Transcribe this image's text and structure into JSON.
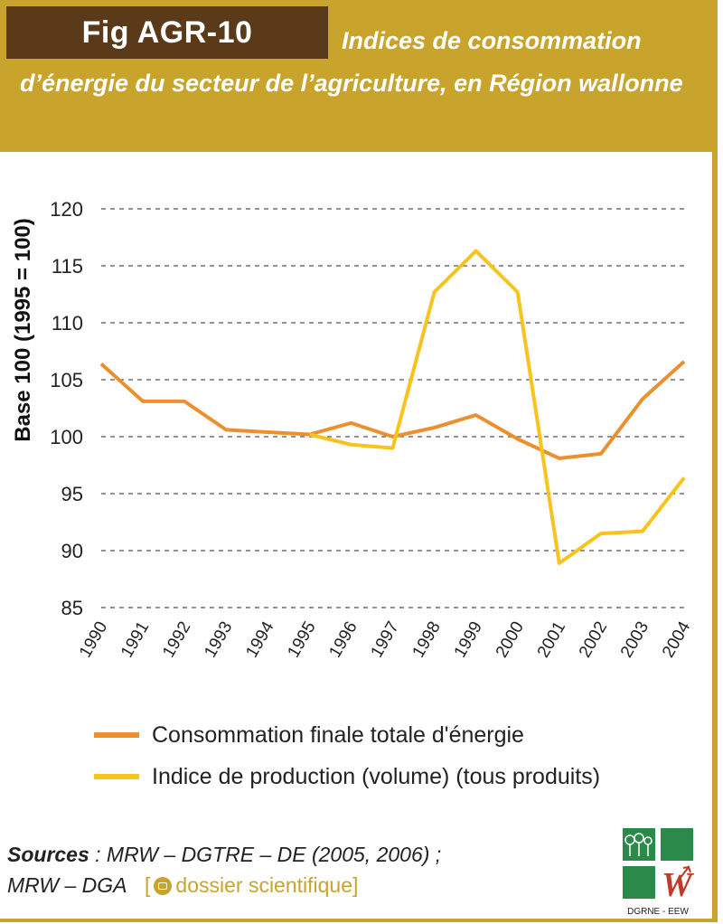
{
  "header": {
    "fig_label": "Fig AGR-10",
    "title_line1": "Indices de consommation",
    "title_rest": "d’énergie du secteur de l’agriculture, en Région wallonne"
  },
  "colors": {
    "header_bg": "#c9a42c",
    "tag_bg": "#5b3a19",
    "series_consumption": "#ec8f2e",
    "series_production": "#f7c31c",
    "grid": "#555555"
  },
  "chart_data": {
    "type": "line",
    "ylabel": "Base 100 (1995 = 100)",
    "xlabel": "",
    "ylim": [
      85,
      120
    ],
    "yticks": [
      85,
      90,
      95,
      100,
      105,
      110,
      115,
      120
    ],
    "grid": "dashed horizontal",
    "legend_position": "bottom",
    "categories": [
      "1990",
      "1991",
      "1992",
      "1993",
      "1994",
      "1995",
      "1996",
      "1997",
      "1998",
      "1999",
      "2000",
      "2001",
      "2002",
      "2003",
      "2004"
    ],
    "series": [
      {
        "name": "Consommation finale totale d'énergie",
        "color": "#ec8f2e",
        "values": [
          106.4,
          103.1,
          103.1,
          100.6,
          100.4,
          100.2,
          101.2,
          100.0,
          100.8,
          101.9,
          99.8,
          98.1,
          98.5,
          103.3,
          106.6
        ]
      },
      {
        "name": "Indice de production (volume) (tous produits)",
        "color": "#f7c31c",
        "values": [
          null,
          null,
          null,
          null,
          null,
          100.2,
          99.3,
          99.0,
          112.7,
          116.3,
          112.7,
          88.9,
          91.5,
          91.7,
          96.4
        ]
      }
    ]
  },
  "sources": {
    "label": "Sources",
    "line1": " : MRW – DGTRE – DE (2005, 2006) ;",
    "line2": "MRW – DGA",
    "bracket_open": "[",
    "dossier_text": "dossier scientifique",
    "bracket_close": "]"
  },
  "logo": {
    "caption": "DGRNE - EEW",
    "letter": "W"
  }
}
